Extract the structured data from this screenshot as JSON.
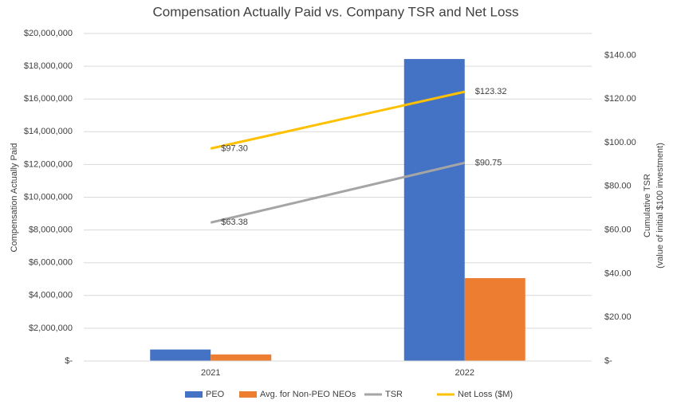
{
  "chart_data": {
    "type": "bar",
    "title": "Compensation Actually Paid vs. Company TSR and Net Loss",
    "y_label": "Compensation Actually Paid",
    "y2_label": [
      "Cumulative TSR",
      "(value of initial $100 investment)"
    ],
    "categories": [
      "2021",
      "2022"
    ],
    "series": [
      {
        "name": "PEO",
        "type": "bar",
        "color": "#4472c4",
        "values": [
          700000,
          18440000
        ]
      },
      {
        "name": "Avg. for Non-PEO NEOs",
        "type": "bar",
        "color": "#ed7d31",
        "values": [
          400000,
          5060000
        ]
      },
      {
        "name": "TSR",
        "type": "line",
        "axis": "y2",
        "color": "#a5a5a5",
        "values": [
          63.38,
          90.75
        ],
        "value_labels": [
          "$63.38",
          "$90.75"
        ]
      },
      {
        "name": "Net Loss ($M)",
        "type": "line",
        "axis": "y2",
        "color": "#ffc000",
        "values": [
          97.3,
          123.32
        ],
        "value_labels": [
          "$97.30",
          "$123.32"
        ]
      }
    ],
    "ylim": [
      0,
      20000000
    ],
    "yticks": [
      {
        "value": 0,
        "label": "$-"
      },
      {
        "value": 2000000,
        "label": "$2,000,000"
      },
      {
        "value": 4000000,
        "label": "$4,000,000"
      },
      {
        "value": 6000000,
        "label": "$6,000,000"
      },
      {
        "value": 8000000,
        "label": "$8,000,000"
      },
      {
        "value": 10000000,
        "label": "$10,000,000"
      },
      {
        "value": 12000000,
        "label": "$12,000,000"
      },
      {
        "value": 14000000,
        "label": "$14,000,000"
      },
      {
        "value": 16000000,
        "label": "$16,000,000"
      },
      {
        "value": 18000000,
        "label": "$18,000,000"
      },
      {
        "value": 20000000,
        "label": "$20,000,000"
      }
    ],
    "y2lim": [
      0,
      150
    ],
    "y2ticks": [
      {
        "value": 0,
        "label": "$-"
      },
      {
        "value": 20,
        "label": "$20.00"
      },
      {
        "value": 40,
        "label": "$40.00"
      },
      {
        "value": 60,
        "label": "$60.00"
      },
      {
        "value": 80,
        "label": "$80.00"
      },
      {
        "value": 100,
        "label": "$100.00"
      },
      {
        "value": 120,
        "label": "$120.00"
      },
      {
        "value": 140,
        "label": "$140.00"
      }
    ],
    "grid": true,
    "legend": "bottom"
  }
}
